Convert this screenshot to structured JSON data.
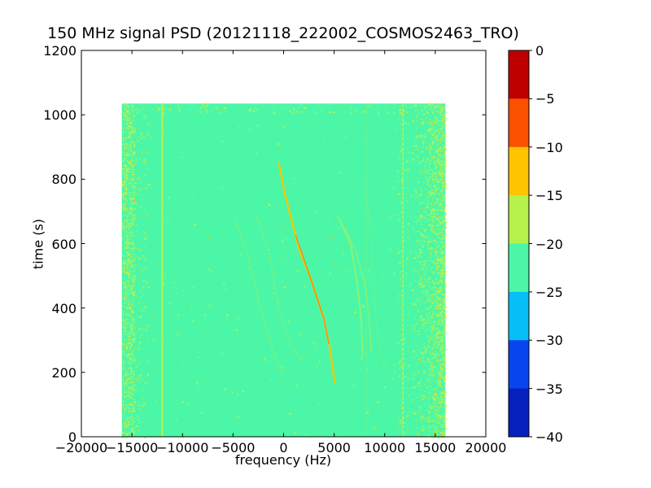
{
  "chart_data": {
    "type": "heatmap",
    "subtype": "spectrogram",
    "title": "150 MHz signal PSD (20121118_222002_COSMOS2463_TRO)",
    "xlabel": "frequency (Hz)",
    "ylabel": "time (s)",
    "xlim": [
      -20000,
      20000
    ],
    "ylim": [
      0,
      1200
    ],
    "xticks": [
      -20000,
      -15000,
      -10000,
      -5000,
      0,
      5000,
      10000,
      15000,
      20000
    ],
    "xticklabels": [
      "−20000",
      "−15000",
      "−10000",
      "−5000",
      "0",
      "5000",
      "10000",
      "15000",
      "20000"
    ],
    "yticks": [
      0,
      200,
      400,
      600,
      800,
      1000,
      1200
    ],
    "yticklabels": [
      "0",
      "200",
      "400",
      "600",
      "800",
      "1000",
      "1200"
    ],
    "grid": false,
    "data_extent": {
      "freq": [
        -16000,
        16000
      ],
      "time": [
        0,
        1035
      ]
    },
    "background_level_db_band": [
      -25,
      -20
    ],
    "background_color": "#4BF7A7",
    "colorbar": {
      "position": "right",
      "tick_values": [
        0,
        -5,
        -10,
        -15,
        -20,
        -25,
        -30,
        -35,
        -40
      ],
      "ticklabels": [
        "0",
        "−5",
        "−10",
        "−15",
        "−20",
        "−25",
        "−30",
        "−35",
        "−40"
      ],
      "band_colors_top_to_bottom": [
        "#BE0000",
        "#FB5000",
        "#FFC400",
        "#B5F24B",
        "#4BF7A7",
        "#06BFF6",
        "#0845EE",
        "#0620BE"
      ]
    },
    "speckle_palette": {
      "weak": "#B5F24B",
      "mid": "#C9F14E",
      "hot": "#FFC400"
    },
    "vlines": [
      {
        "f": -12000,
        "color": "#BCF04A",
        "width": 2.2,
        "dash": "",
        "opacity": 0.95
      },
      {
        "f": -7900,
        "color": "#A7ED58",
        "width": 1.0,
        "dash": "2 4",
        "opacity": 0.25
      },
      {
        "f": -50,
        "color": "#9FEB60",
        "width": 1.0,
        "dash": "2 3",
        "opacity": 0.4
      },
      {
        "f": 5800,
        "color": "#A7ED58",
        "width": 1.0,
        "dash": "2 4",
        "opacity": 0.25
      },
      {
        "f": 8200,
        "color": "#A9EC55",
        "width": 1.2,
        "dash": "2 3",
        "opacity": 0.5
      },
      {
        "f": 11800,
        "color": "#C9F04C",
        "width": 1.6,
        "dash": "4 2",
        "opacity": 0.85
      }
    ],
    "noise_bands": [
      {
        "f0": -16000,
        "f1": -14800,
        "density": 0.6
      },
      {
        "f0": -14800,
        "f1": -13400,
        "density": 0.08
      },
      {
        "f0": 11300,
        "f1": 12350,
        "density": 0.07
      },
      {
        "f0": 12350,
        "f1": 16000,
        "density": 0.26,
        "gradient": true
      },
      {
        "f0": 14200,
        "f1": 16000,
        "density": 0.2,
        "gradient": true
      },
      {
        "f0": -16000,
        "f1": 16000,
        "density": 0.006
      },
      {
        "f0": -16000,
        "f1": 16000,
        "t0": 1005,
        "t1": 1035,
        "density": 0.1
      }
    ],
    "traces": [
      {
        "name": "doppler-left-a",
        "color": "#AEE94E",
        "width": 1.3,
        "dash": "2 2.2",
        "opacity": 0.65,
        "points": [
          [
            -4800,
            672
          ],
          [
            -3500,
            560
          ],
          [
            -2300,
            400
          ],
          [
            -1100,
            270
          ],
          [
            -300,
            210
          ]
        ]
      },
      {
        "name": "doppler-left-b",
        "color": "#AEE94E",
        "width": 1.3,
        "dash": "2 2.4",
        "opacity": 0.6,
        "points": [
          [
            -2700,
            688
          ],
          [
            -1400,
            570
          ],
          [
            -500,
            400
          ],
          [
            800,
            280
          ],
          [
            1900,
            235
          ]
        ]
      },
      {
        "name": "doppler-main",
        "color": "#FFC400",
        "width": 2.4,
        "dash": "3 1.6",
        "opacity": 0.95,
        "points": [
          [
            -480,
            850
          ],
          [
            160,
            750
          ],
          [
            730,
            680
          ],
          [
            1610,
            575
          ],
          [
            2580,
            500
          ],
          [
            3950,
            370
          ],
          [
            4520,
            285
          ],
          [
            4920,
            200
          ],
          [
            5080,
            170
          ]
        ]
      },
      {
        "name": "doppler-main-core",
        "color": "#FF7A1A",
        "width": 1.4,
        "dash": "2.5 1.4",
        "opacity": 0.9,
        "points": [
          [
            1200,
            625
          ],
          [
            2580,
            500
          ],
          [
            3950,
            370
          ],
          [
            4480,
            290
          ]
        ]
      },
      {
        "name": "doppler-right-a",
        "color": "#C3EF4A",
        "width": 1.5,
        "dash": "2.5 1.8",
        "opacity": 0.8,
        "points": [
          [
            5400,
            683
          ],
          [
            6610,
            600
          ],
          [
            7260,
            480
          ],
          [
            7650,
            370
          ],
          [
            7830,
            250
          ]
        ]
      },
      {
        "name": "doppler-right-b",
        "color": "#B9EC4C",
        "width": 1.4,
        "dash": "2.2 2",
        "opacity": 0.7,
        "points": [
          [
            6050,
            650
          ],
          [
            7180,
            573
          ],
          [
            8060,
            470
          ],
          [
            8440,
            380
          ],
          [
            8650,
            265
          ]
        ]
      },
      {
        "name": "doppler-right-c",
        "color": "#A8E85A",
        "width": 1.2,
        "dash": "1.8 2.6",
        "opacity": 0.5,
        "points": [
          [
            8100,
            790
          ],
          [
            8650,
            610
          ],
          [
            9040,
            400
          ],
          [
            9400,
            295
          ],
          [
            10000,
            212
          ]
        ]
      }
    ]
  }
}
